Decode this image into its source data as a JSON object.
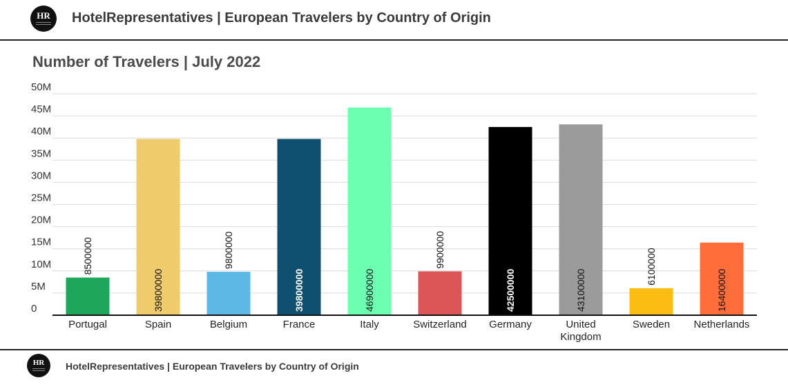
{
  "header": {
    "logo_text": "HR",
    "title": "HotelRepresentatives | European Travelers by Country of Origin"
  },
  "footer": {
    "logo_text": "HR",
    "title": "HotelRepresentatives | European Travelers by Country of Origin"
  },
  "chart_data": {
    "type": "bar",
    "title": "Number of Travelers | July 2022",
    "xlabel": "",
    "ylabel": "",
    "categories": [
      "Portugal",
      "Spain",
      "Belgium",
      "France",
      "Italy",
      "Switzerland",
      "Germany",
      "United Kingdom",
      "Sweden",
      "Netherlands"
    ],
    "category_lines": [
      [
        "Portugal"
      ],
      [
        "Spain"
      ],
      [
        "Belgium"
      ],
      [
        "France"
      ],
      [
        "Italy"
      ],
      [
        "Switzerland"
      ],
      [
        "Germany"
      ],
      [
        "United",
        "Kingdom"
      ],
      [
        "Sweden"
      ],
      [
        "Netherlands"
      ]
    ],
    "values": [
      8500000,
      39800000,
      9800000,
      39800000,
      46900000,
      9900000,
      42500000,
      43100000,
      6100000,
      16400000
    ],
    "data_labels": [
      "8500000",
      "39800000",
      "9800000",
      "39800000",
      "46900000",
      "9900000",
      "42500000",
      "43100000",
      "6100000",
      "16400000"
    ],
    "colors": [
      "#1ea75a",
      "#efcb6c",
      "#5db8e6",
      "#0f4f70",
      "#6dffb1",
      "#dc5557",
      "#000000",
      "#9b9b9b",
      "#fbbd12",
      "#ff6d3b"
    ],
    "label_colors": [
      "#111111",
      "#111111",
      "#111111",
      "#ffffff",
      "#111111",
      "#111111",
      "#ffffff",
      "#111111",
      "#111111",
      "#111111"
    ],
    "label_inside": [
      false,
      true,
      false,
      true,
      true,
      false,
      true,
      true,
      false,
      true
    ],
    "label_bold": [
      false,
      false,
      false,
      true,
      false,
      false,
      true,
      false,
      false,
      false
    ],
    "ylim": [
      0,
      50000000
    ],
    "yticks": [
      0,
      5000000,
      10000000,
      15000000,
      20000000,
      25000000,
      30000000,
      35000000,
      40000000,
      45000000,
      50000000
    ],
    "ytick_labels": [
      "0",
      "5M",
      "10M",
      "15M",
      "20M",
      "25M",
      "30M",
      "35M",
      "40M",
      "45M",
      "50M"
    ],
    "grid": true,
    "legend": "none"
  }
}
